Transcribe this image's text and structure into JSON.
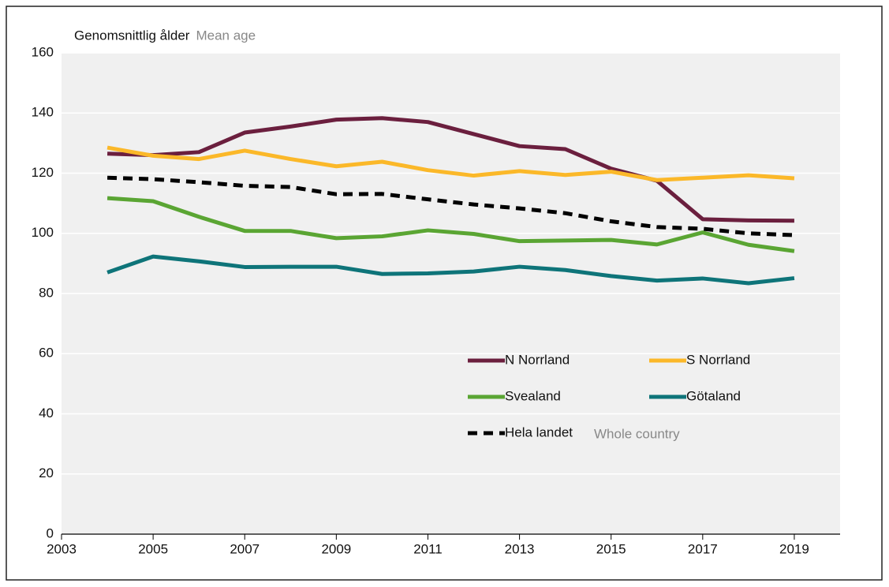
{
  "chart_data": {
    "type": "line",
    "ylabel": "Genomsnittlig ålder",
    "ylabel_secondary": "Mean age",
    "x": [
      2004,
      2005,
      2006,
      2007,
      2008,
      2009,
      2010,
      2011,
      2012,
      2013,
      2014,
      2015,
      2016,
      2017,
      2018,
      2019
    ],
    "series": [
      {
        "name": "N Norrland",
        "color": "#6b1f3e",
        "values": [
          126.5,
          126,
          127,
          133.5,
          135.5,
          137.8,
          138.3,
          137,
          133,
          129,
          128,
          121.5,
          117.5,
          104.7,
          104.3,
          104.2
        ]
      },
      {
        "name": "S Norrland",
        "color": "#fbb829",
        "values": [
          128.5,
          125.8,
          124.7,
          127.5,
          124.7,
          122.3,
          123.8,
          121,
          119.2,
          120.7,
          119.4,
          120.5,
          117.7,
          118.5,
          119.3,
          118.3
        ]
      },
      {
        "name": "Svealand",
        "color": "#5aa533",
        "values": [
          111.7,
          110.7,
          105.5,
          100.8,
          100.8,
          98.4,
          99,
          101,
          99.8,
          97.4,
          97.6,
          97.8,
          96.3,
          100.3,
          96.2,
          94.1
        ]
      },
      {
        "name": "Götaland",
        "color": "#0e7479",
        "values": [
          87,
          92.3,
          90.7,
          88.8,
          88.9,
          88.9,
          86.5,
          86.7,
          87.3,
          88.9,
          87.8,
          85.8,
          84.3,
          85,
          83.4,
          85.1
        ]
      },
      {
        "name": "Hela landet",
        "color": "#000000",
        "dashed": true,
        "values": [
          118.5,
          118,
          117,
          115.8,
          115.4,
          113,
          113.1,
          111.3,
          109.6,
          108.3,
          106.7,
          104,
          102.1,
          101.5,
          100,
          99.4
        ]
      }
    ],
    "legend_annotation": "Whole country",
    "xlim": [
      2003,
      2020
    ],
    "xticks": [
      2003,
      2005,
      2007,
      2009,
      2011,
      2013,
      2015,
      2017,
      2019
    ],
    "ylim": [
      0,
      160
    ],
    "yticks": [
      0,
      20,
      40,
      60,
      80,
      100,
      120,
      140,
      160
    ],
    "grid": true
  }
}
